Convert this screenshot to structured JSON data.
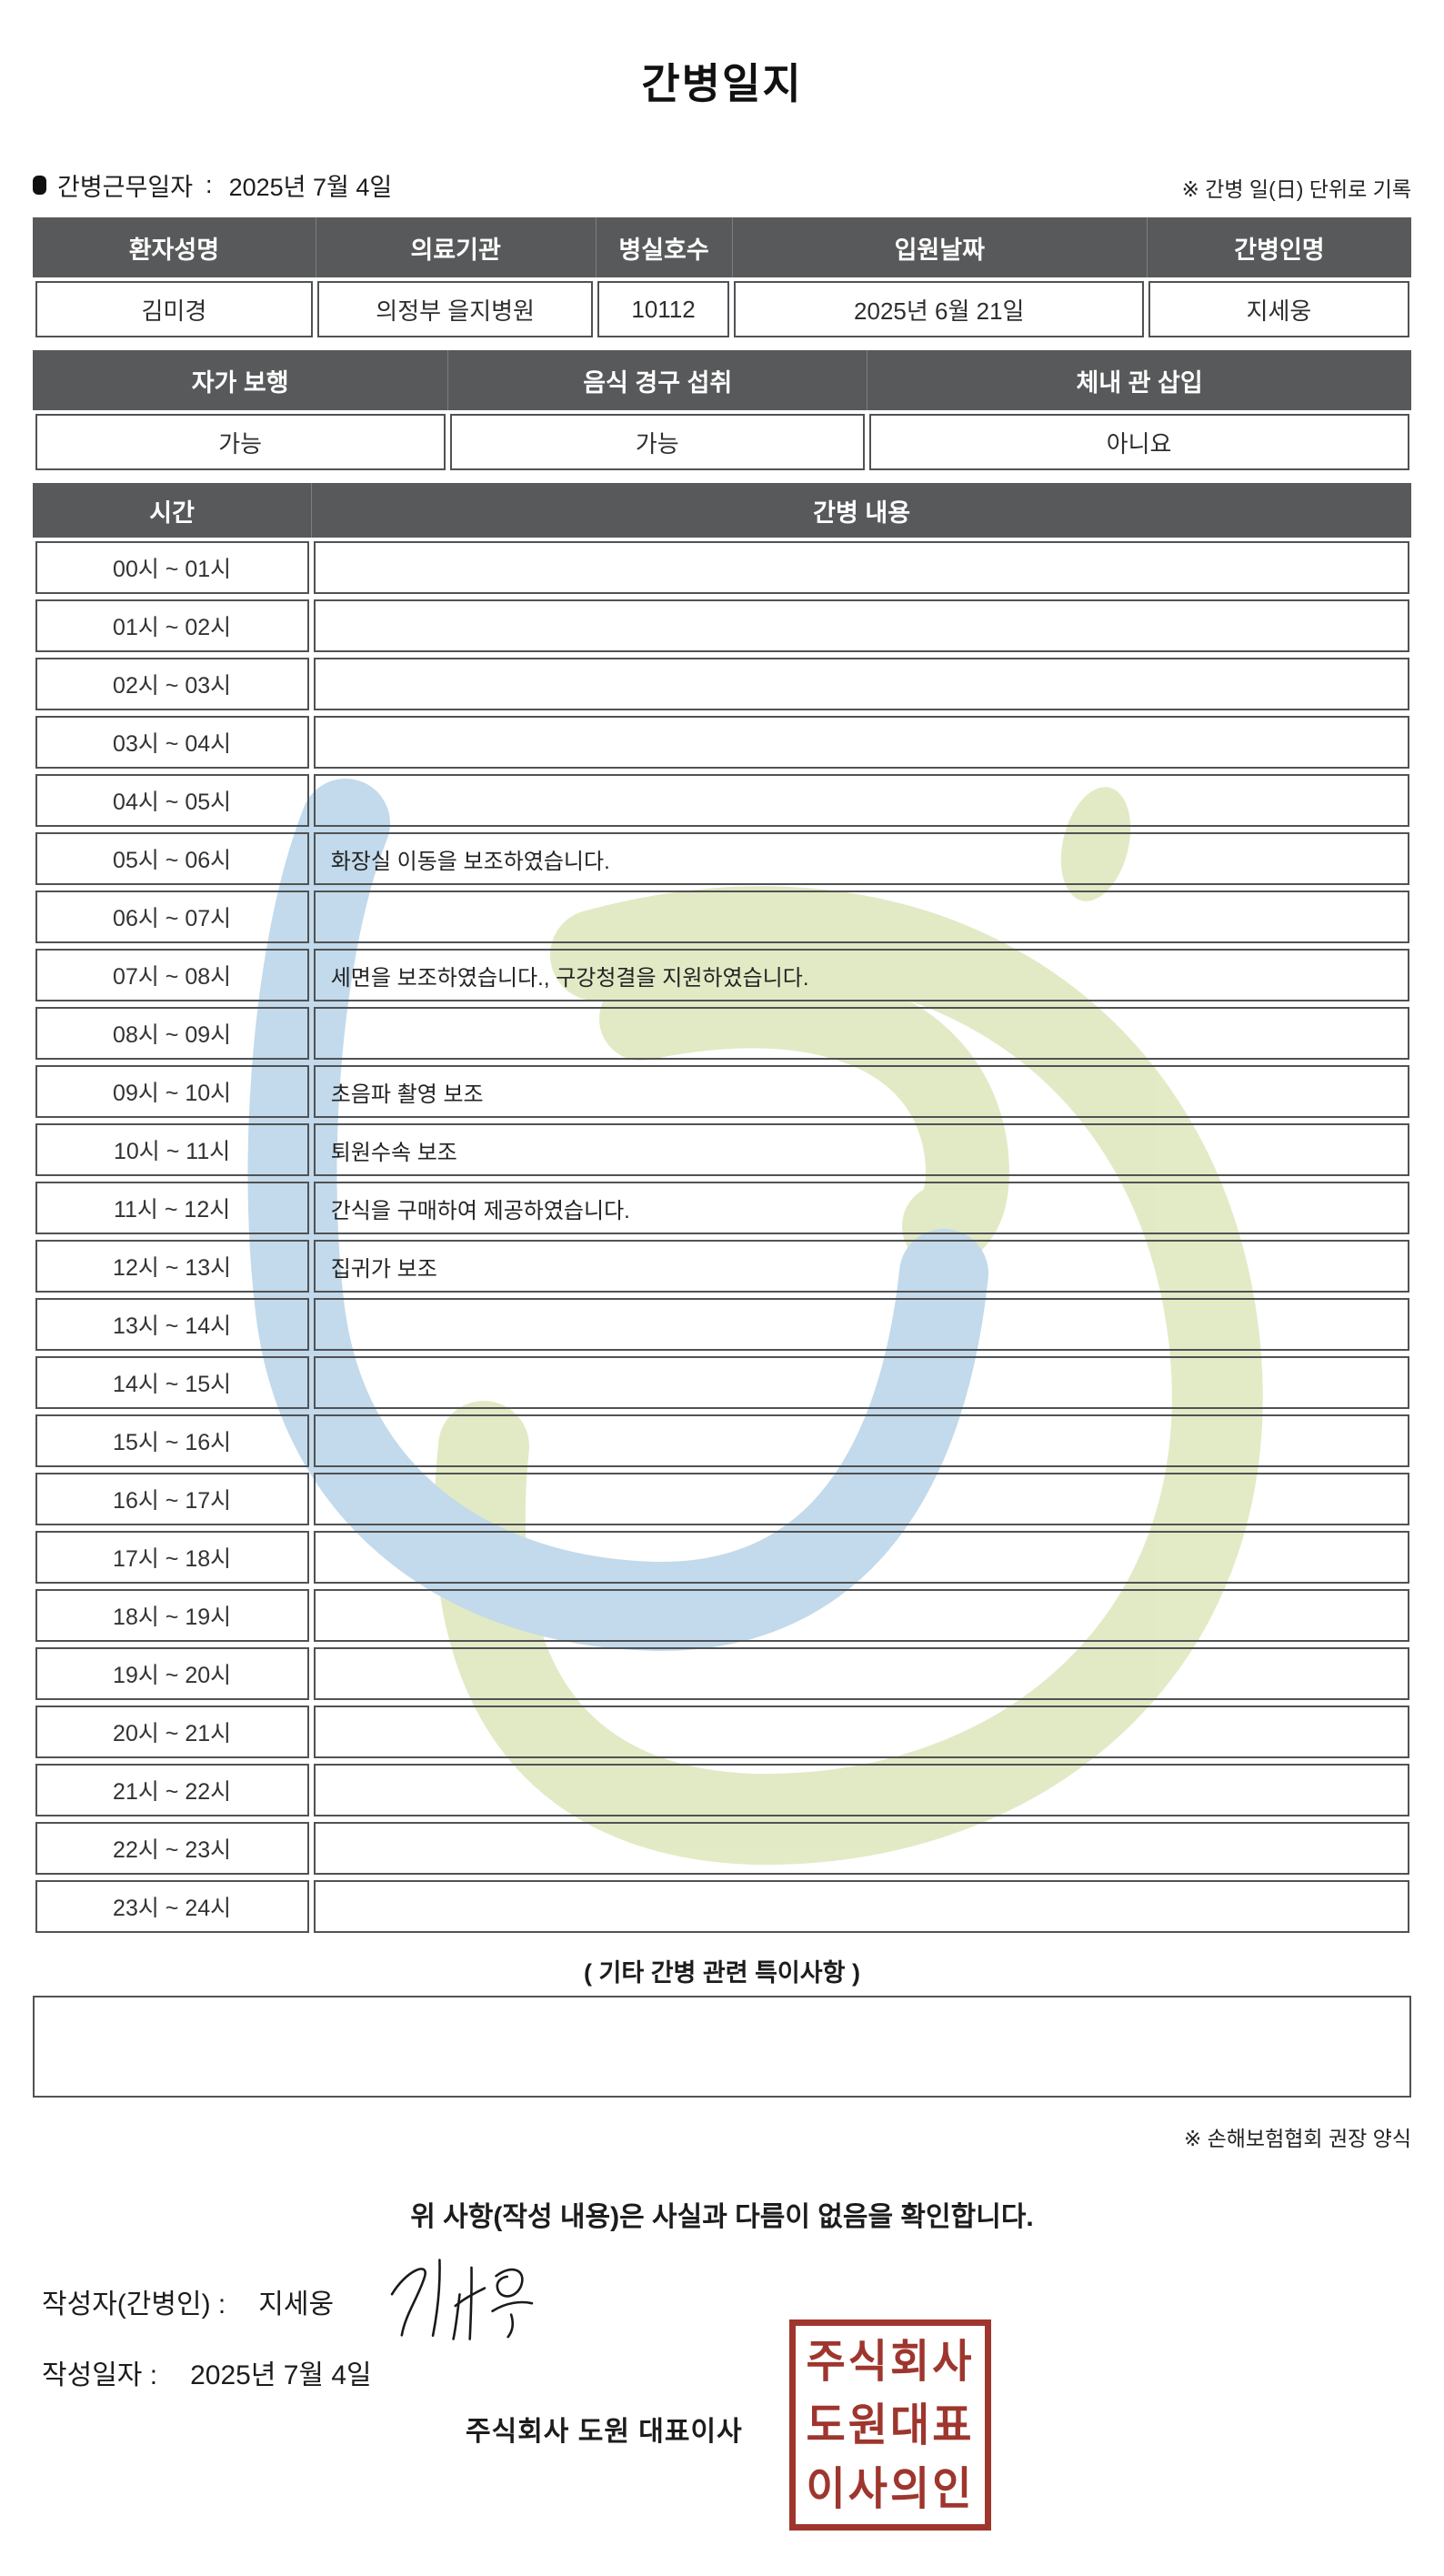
{
  "title": "간병일지",
  "meta": {
    "work_date_label": "간병근무일자",
    "separator": ":",
    "work_date": "2025년 7월 4일",
    "unit_note": "※ 간병 일(日) 단위로 기록"
  },
  "patient_table": {
    "headers": [
      "환자성명",
      "의료기관",
      "병실호수",
      "입원날짜",
      "간병인명"
    ],
    "values": [
      "김미경",
      "의정부 을지병원",
      "10112",
      "2025년 6월 21일",
      "지세웅"
    ]
  },
  "status_table": {
    "headers": [
      "자가 보행",
      "음식 경구 섭취",
      "체내 관 삽입"
    ],
    "values": [
      "가능",
      "가능",
      "아니요"
    ]
  },
  "care_table": {
    "time_header": "시간",
    "content_header": "간병 내용",
    "rows": [
      {
        "time": "00시 ~ 01시",
        "content": ""
      },
      {
        "time": "01시 ~ 02시",
        "content": ""
      },
      {
        "time": "02시 ~ 03시",
        "content": ""
      },
      {
        "time": "03시 ~ 04시",
        "content": ""
      },
      {
        "time": "04시 ~ 05시",
        "content": ""
      },
      {
        "time": "05시 ~ 06시",
        "content": "화장실 이동을 보조하였습니다."
      },
      {
        "time": "06시 ~ 07시",
        "content": ""
      },
      {
        "time": "07시 ~ 08시",
        "content": "세면을 보조하였습니다., 구강청결을 지원하였습니다."
      },
      {
        "time": "08시 ~ 09시",
        "content": ""
      },
      {
        "time": "09시 ~ 10시",
        "content": "초음파 촬영 보조"
      },
      {
        "time": "10시 ~ 11시",
        "content": "퇴원수속 보조"
      },
      {
        "time": "11시 ~ 12시",
        "content": "간식을 구매하여 제공하였습니다."
      },
      {
        "time": "12시 ~ 13시",
        "content": "집귀가 보조"
      },
      {
        "time": "13시 ~ 14시",
        "content": ""
      },
      {
        "time": "14시 ~ 15시",
        "content": ""
      },
      {
        "time": "15시 ~ 16시",
        "content": ""
      },
      {
        "time": "16시 ~ 17시",
        "content": ""
      },
      {
        "time": "17시 ~ 18시",
        "content": ""
      },
      {
        "time": "18시 ~ 19시",
        "content": ""
      },
      {
        "time": "19시 ~ 20시",
        "content": ""
      },
      {
        "time": "20시 ~ 21시",
        "content": ""
      },
      {
        "time": "21시 ~ 22시",
        "content": ""
      },
      {
        "time": "22시 ~ 23시",
        "content": ""
      },
      {
        "time": "23시 ~ 24시",
        "content": ""
      }
    ]
  },
  "notes": {
    "heading": "( 기타 간병 관련 특이사항 )",
    "content": "",
    "form_note": "※ 손해보험협회 권장 양식"
  },
  "confirmation": "위 사항(작성 내용)은 사실과 다름이 없음을 확인합니다.",
  "signature": {
    "writer_label": "작성자(간병인) :",
    "writer_name": "지세웅",
    "date_label": "작성일자 :",
    "date_value": "2025년 7월 4일",
    "company_line": "주식회사 도원    대표이사",
    "seal_lines": [
      "주식회사",
      "도원대표",
      "이사의인"
    ]
  },
  "colors": {
    "header_bg": "#58595a",
    "cell_border": "#515254",
    "seal_red": "#9e362e",
    "watermark_green": "#dfe9c1",
    "watermark_blue": "#bdd7ea"
  }
}
